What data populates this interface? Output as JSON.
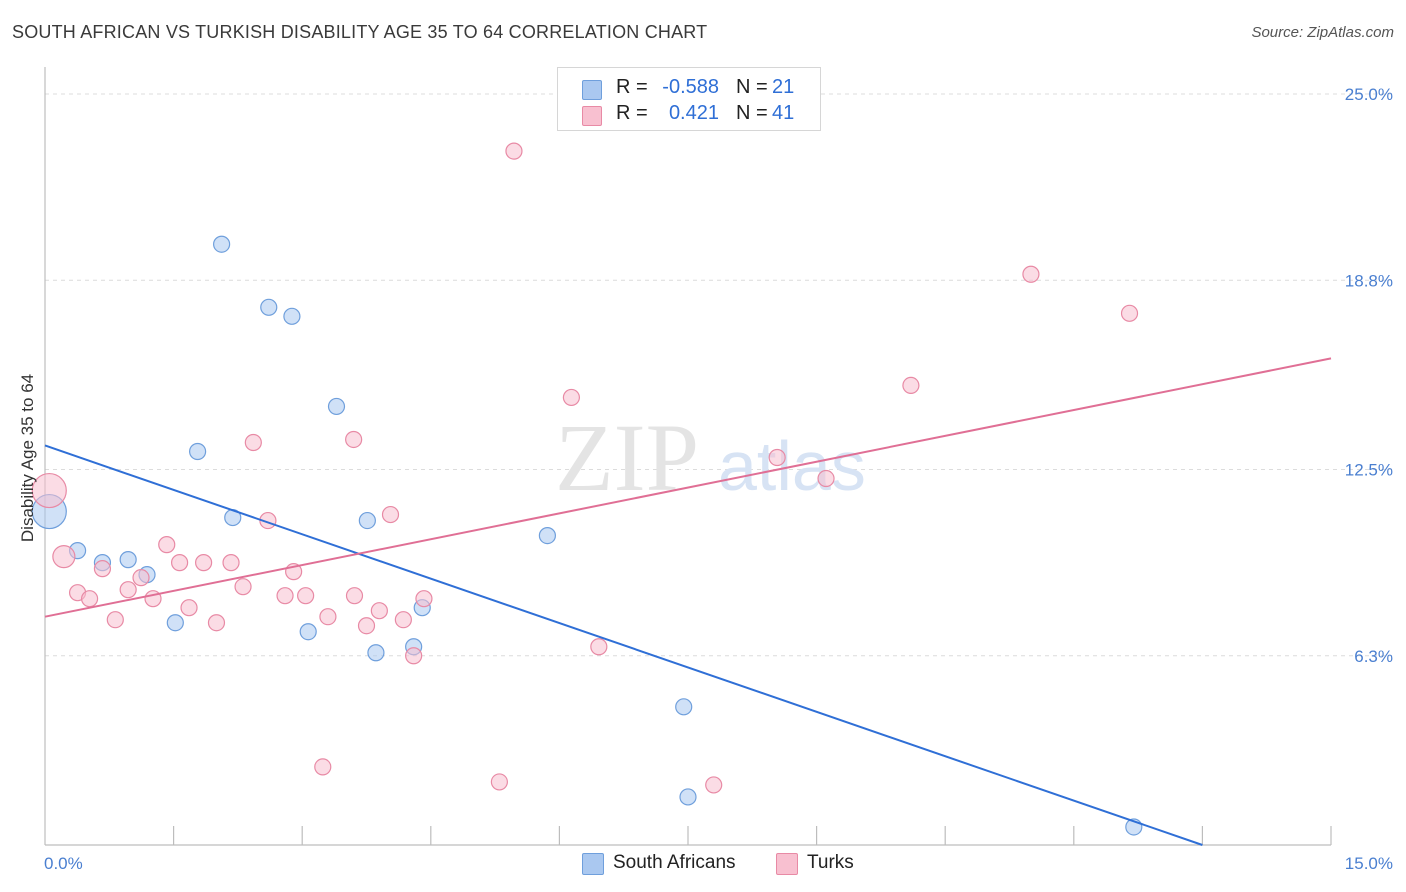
{
  "title": "SOUTH AFRICAN VS TURKISH DISABILITY AGE 35 TO 64 CORRELATION CHART",
  "source": "Source: ZipAtlas.com",
  "watermark": {
    "zip": "ZIP",
    "atlas": "atlas"
  },
  "stats": [
    {
      "r_label": "R =",
      "r_value": "-0.588",
      "n_label": "N =",
      "n_value": "21",
      "color": "#aac8f0",
      "border": "#6f9fdc"
    },
    {
      "r_label": "R =",
      "r_value": "0.421",
      "n_label": "N =",
      "n_value": "41",
      "color": "#f8c0d0",
      "border": "#e88aa5"
    }
  ],
  "legend": [
    {
      "label": "South Africans",
      "color": "#aac8f0",
      "border": "#6f9fdc"
    },
    {
      "label": "Turks",
      "color": "#f8c0d0",
      "border": "#e88aa5"
    }
  ],
  "chart_data": {
    "type": "scatter",
    "title": "SOUTH AFRICAN VS TURKISH DISABILITY AGE 35 TO 64 CORRELATION CHART",
    "xlabel": "",
    "ylabel": "Disability Age 35 to 64",
    "xlim": [
      0,
      15
    ],
    "ylim": [
      0,
      25.9
    ],
    "x_tick_labels": [
      "0.0%",
      "15.0%"
    ],
    "y_ticks": [
      6.3,
      12.5,
      18.8,
      25.0
    ],
    "y_tick_labels": [
      "6.3%",
      "12.5%",
      "18.8%",
      "25.0%"
    ],
    "grid": true,
    "series": [
      {
        "name": "South Africans",
        "color": "#aac8f0",
        "edge": "#6f9fdc",
        "line_color": "#2f6fd6",
        "trend": [
          [
            0,
            13.3
          ],
          [
            13.5,
            0
          ]
        ],
        "points": [
          {
            "x": 0.05,
            "y": 11.1,
            "s": "big"
          },
          {
            "x": 0.38,
            "y": 9.8
          },
          {
            "x": 0.67,
            "y": 9.4
          },
          {
            "x": 0.97,
            "y": 9.5
          },
          {
            "x": 1.19,
            "y": 9.0
          },
          {
            "x": 1.52,
            "y": 7.4
          },
          {
            "x": 1.78,
            "y": 13.1
          },
          {
            "x": 2.06,
            "y": 20.0
          },
          {
            "x": 2.19,
            "y": 10.9
          },
          {
            "x": 2.61,
            "y": 17.9
          },
          {
            "x": 2.88,
            "y": 17.6
          },
          {
            "x": 3.07,
            "y": 7.1
          },
          {
            "x": 3.4,
            "y": 14.6
          },
          {
            "x": 3.76,
            "y": 10.8
          },
          {
            "x": 3.86,
            "y": 6.4
          },
          {
            "x": 4.3,
            "y": 6.6
          },
          {
            "x": 4.4,
            "y": 7.9
          },
          {
            "x": 5.86,
            "y": 10.3
          },
          {
            "x": 7.45,
            "y": 4.6
          },
          {
            "x": 7.5,
            "y": 1.6
          },
          {
            "x": 12.7,
            "y": 0.6
          }
        ]
      },
      {
        "name": "Turks",
        "color": "#f8c0d0",
        "edge": "#e88aa5",
        "line_color": "#e06f95",
        "trend": [
          [
            0,
            7.6
          ],
          [
            15,
            16.2
          ]
        ],
        "points": [
          {
            "x": 0.05,
            "y": 11.8,
            "s": "big"
          },
          {
            "x": 0.22,
            "y": 9.6,
            "s": "med"
          },
          {
            "x": 0.38,
            "y": 8.4
          },
          {
            "x": 0.52,
            "y": 8.2
          },
          {
            "x": 0.67,
            "y": 9.2
          },
          {
            "x": 0.82,
            "y": 7.5
          },
          {
            "x": 0.97,
            "y": 8.5
          },
          {
            "x": 1.12,
            "y": 8.9
          },
          {
            "x": 1.26,
            "y": 8.2
          },
          {
            "x": 1.42,
            "y": 10.0
          },
          {
            "x": 1.57,
            "y": 9.4
          },
          {
            "x": 1.68,
            "y": 7.9
          },
          {
            "x": 1.85,
            "y": 9.4
          },
          {
            "x": 2.0,
            "y": 7.4
          },
          {
            "x": 2.17,
            "y": 9.4
          },
          {
            "x": 2.31,
            "y": 8.6
          },
          {
            "x": 2.43,
            "y": 13.4
          },
          {
            "x": 2.6,
            "y": 10.8
          },
          {
            "x": 2.8,
            "y": 8.3
          },
          {
            "x": 2.9,
            "y": 9.1
          },
          {
            "x": 3.04,
            "y": 8.3
          },
          {
            "x": 3.24,
            "y": 2.6
          },
          {
            "x": 3.3,
            "y": 7.6
          },
          {
            "x": 3.6,
            "y": 13.5
          },
          {
            "x": 3.61,
            "y": 8.3
          },
          {
            "x": 3.75,
            "y": 7.3
          },
          {
            "x": 3.9,
            "y": 7.8
          },
          {
            "x": 4.18,
            "y": 7.5
          },
          {
            "x": 4.03,
            "y": 11.0
          },
          {
            "x": 4.3,
            "y": 6.3
          },
          {
            "x": 4.42,
            "y": 8.2
          },
          {
            "x": 5.3,
            "y": 2.1
          },
          {
            "x": 5.47,
            "y": 23.1
          },
          {
            "x": 6.14,
            "y": 14.9
          },
          {
            "x": 6.46,
            "y": 6.6
          },
          {
            "x": 7.8,
            "y": 2.0
          },
          {
            "x": 8.54,
            "y": 12.9
          },
          {
            "x": 9.11,
            "y": 12.2
          },
          {
            "x": 10.1,
            "y": 15.3
          },
          {
            "x": 11.5,
            "y": 19.0
          },
          {
            "x": 12.65,
            "y": 17.7
          }
        ]
      }
    ]
  }
}
